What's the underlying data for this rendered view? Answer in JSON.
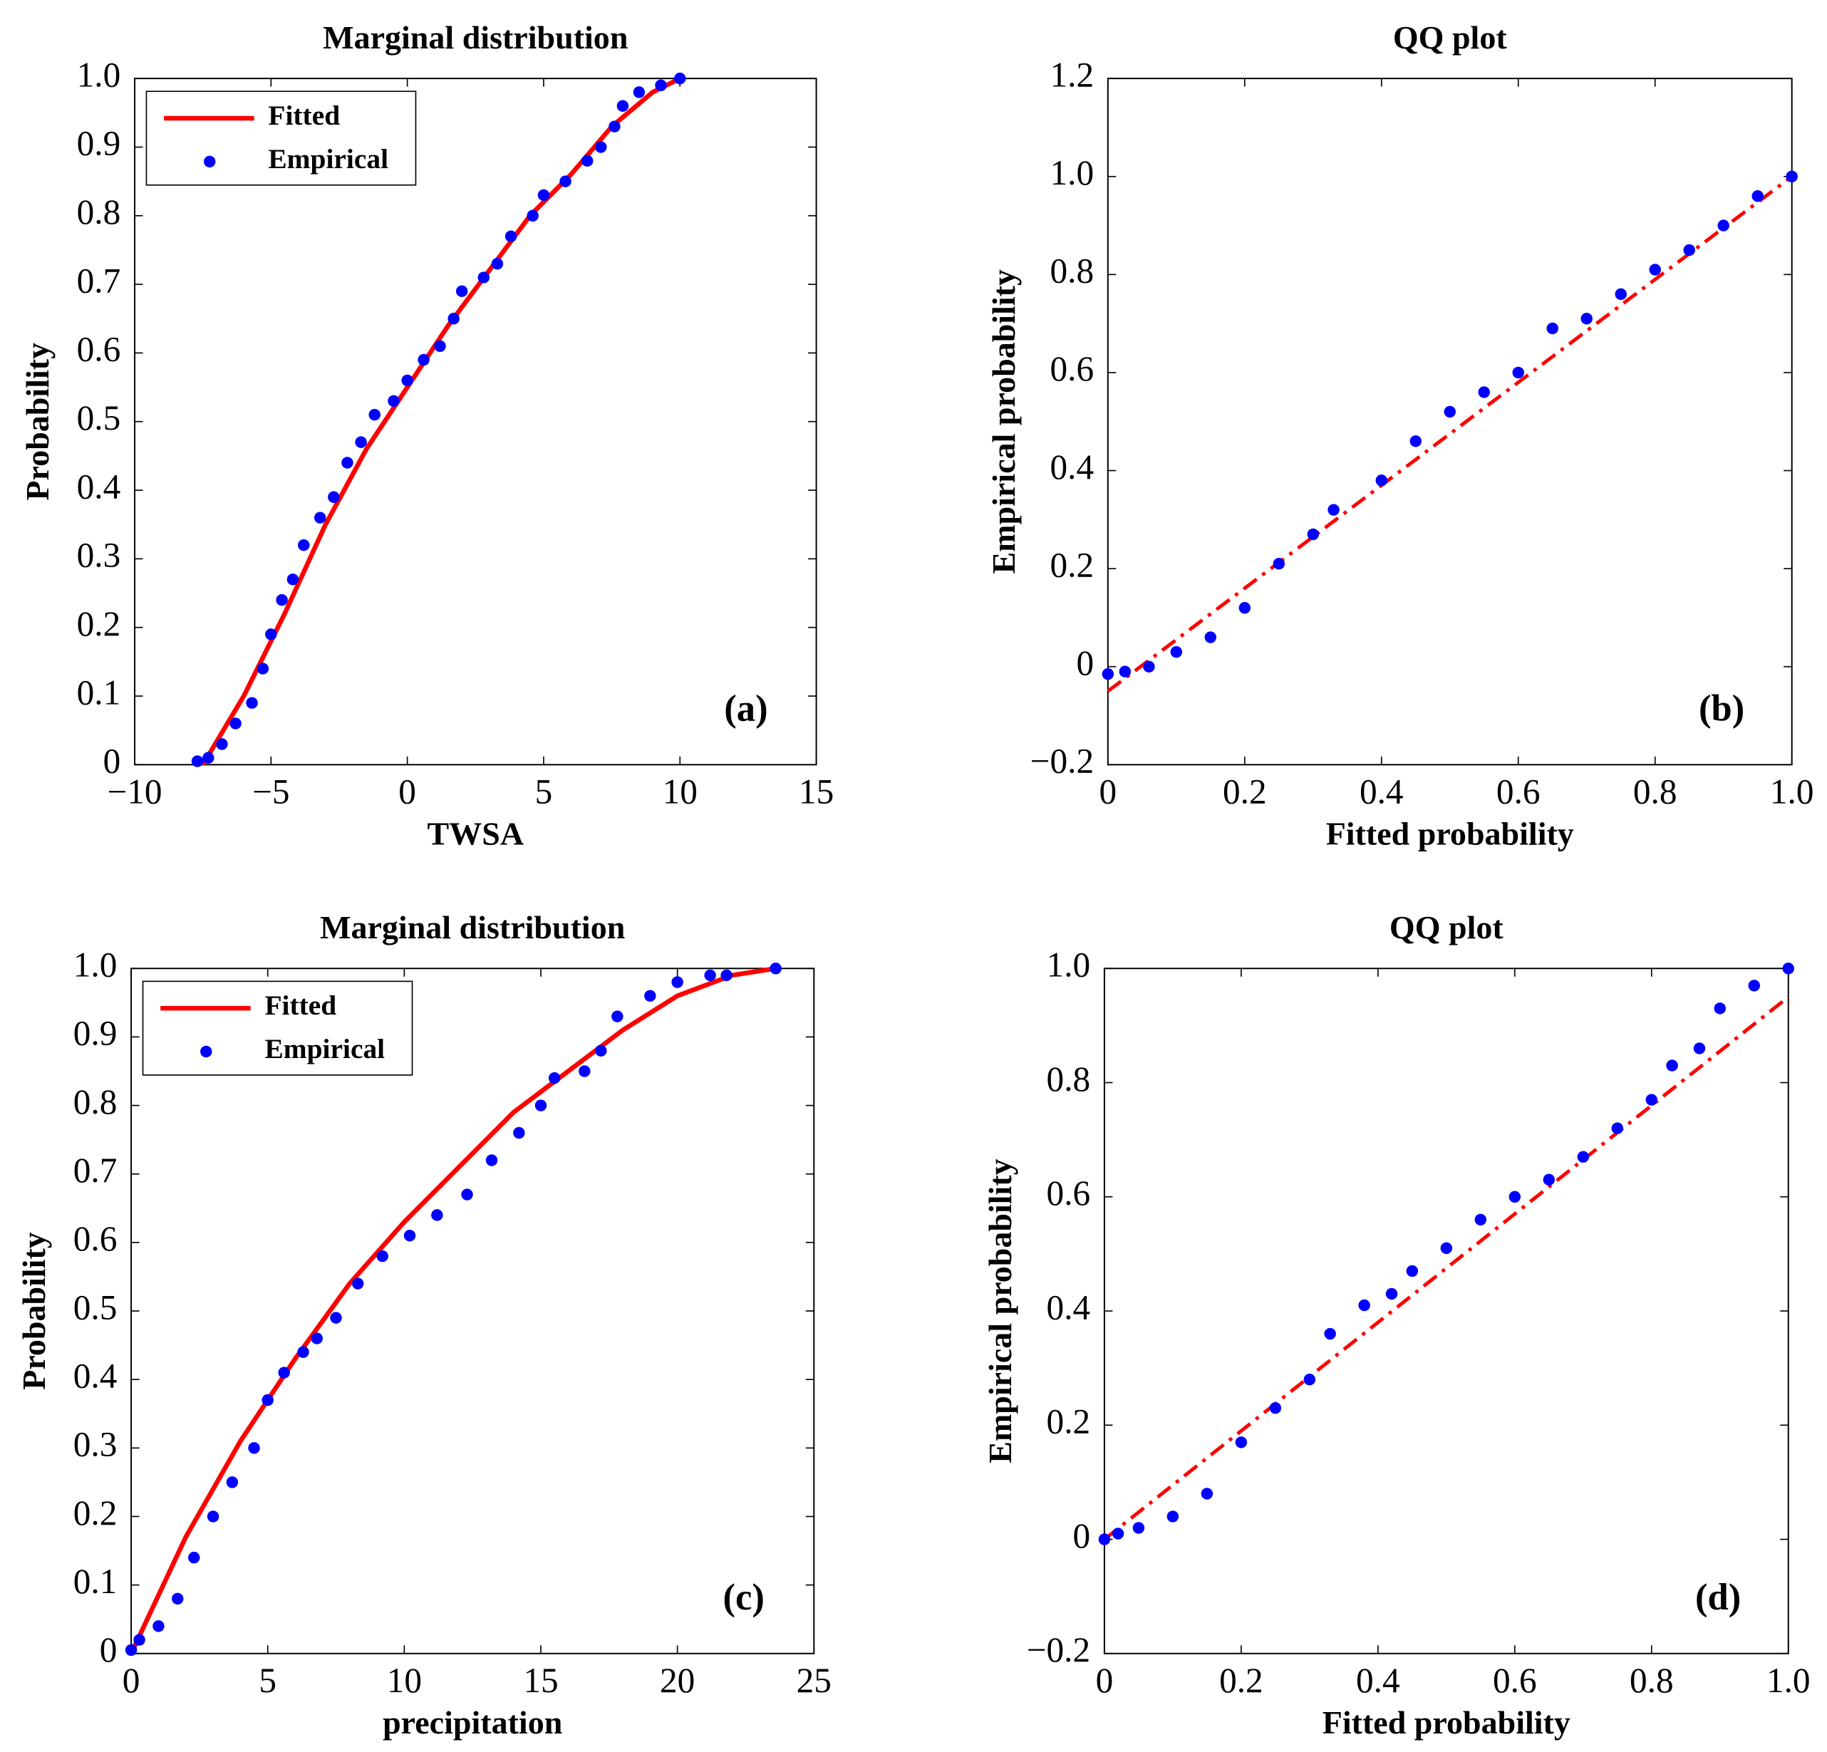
{
  "chart_data": [
    {
      "type": "scatter",
      "title": "Marginal distribution",
      "xlabel": "TWSA",
      "ylabel": "Probability",
      "annotation": "(a)",
      "legend": "upper left",
      "xlim": [
        -10,
        15
      ],
      "ylim": [
        0,
        1
      ],
      "xticks": [
        {
          "value": -10,
          "label": "−10"
        },
        {
          "value": -5,
          "label": "−5"
        },
        0,
        5,
        10,
        15
      ],
      "yticks": [
        0,
        0.1,
        0.2,
        0.3,
        0.4,
        0.5,
        0.6,
        0.7,
        0.8,
        0.9,
        {
          "value": 1,
          "label": "1.0"
        }
      ],
      "series": [
        {
          "name": "Fitted",
          "color": "#ff0000",
          "mode": "line",
          "x": [
            -7.5,
            -6,
            -4.5,
            -3,
            -1.5,
            0,
            1.5,
            3,
            4.5,
            6,
            7.5,
            9,
            10
          ],
          "values": [
            0,
            0.1,
            0.22,
            0.35,
            0.46,
            0.55,
            0.64,
            0.72,
            0.8,
            0.86,
            0.93,
            0.98,
            1.0
          ]
        },
        {
          "name": "Empirical",
          "color": "#0000ff",
          "mode": "markers",
          "x": [
            -7.7,
            -7.3,
            -6.8,
            -6.3,
            -5.7,
            -5.3,
            -5,
            -4.6,
            -4.2,
            -3.8,
            -3.2,
            -2.7,
            -2.2,
            -1.7,
            -1.2,
            -0.5,
            0,
            0.6,
            1.2,
            1.7,
            2,
            2.8,
            3.3,
            3.8,
            4.6,
            5,
            5.8,
            6.6,
            7.1,
            7.6,
            7.9,
            8.5,
            9.3,
            10
          ],
          "values": [
            0.005,
            0.01,
            0.03,
            0.06,
            0.09,
            0.14,
            0.19,
            0.24,
            0.27,
            0.32,
            0.36,
            0.39,
            0.44,
            0.47,
            0.51,
            0.53,
            0.56,
            0.59,
            0.61,
            0.65,
            0.69,
            0.71,
            0.73,
            0.77,
            0.8,
            0.83,
            0.85,
            0.88,
            0.9,
            0.93,
            0.96,
            0.98,
            0.99,
            1.0
          ]
        }
      ]
    },
    {
      "type": "scatter",
      "title": "QQ plot",
      "xlabel": "Fitted probability",
      "ylabel": "Empirical probability",
      "annotation": "(b)",
      "xlim": [
        0,
        1
      ],
      "ylim": [
        -0.2,
        1.2
      ],
      "xticks": [
        0,
        0.2,
        0.4,
        0.6,
        0.8,
        {
          "value": 1,
          "label": "1.0"
        }
      ],
      "yticks": [
        {
          "value": -0.2,
          "label": "−0.2"
        },
        0,
        0.2,
        0.4,
        0.6,
        0.8,
        {
          "value": 1,
          "label": "1.0"
        },
        1.2
      ],
      "series": [
        {
          "color": "#ff0000",
          "mode": "line",
          "dash": "dashdot",
          "x": [
            0,
            1
          ],
          "values": [
            -0.05,
            1.0
          ]
        },
        {
          "color": "#0000ff",
          "mode": "markers",
          "x": [
            0,
            0.025,
            0.06,
            0.1,
            0.15,
            0.2,
            0.25,
            0.3,
            0.33,
            0.4,
            0.45,
            0.5,
            0.55,
            0.6,
            0.65,
            0.7,
            0.75,
            0.8,
            0.85,
            0.9,
            0.95,
            1
          ],
          "values": [
            -0.015,
            -0.01,
            0,
            0.03,
            0.06,
            0.12,
            0.21,
            0.27,
            0.32,
            0.38,
            0.46,
            0.52,
            0.56,
            0.6,
            0.69,
            0.71,
            0.76,
            0.81,
            0.85,
            0.9,
            0.96,
            1.0
          ]
        }
      ]
    },
    {
      "type": "scatter",
      "title": "Marginal distribution",
      "xlabel": "precipitation",
      "ylabel": "Probability",
      "annotation": "(c)",
      "legend": "upper left",
      "xlim": [
        0,
        25
      ],
      "ylim": [
        0,
        1
      ],
      "xticks": [
        0,
        5,
        10,
        15,
        20,
        25
      ],
      "yticks": [
        0,
        0.1,
        0.2,
        0.3,
        0.4,
        0.5,
        0.6,
        0.7,
        0.8,
        0.9,
        {
          "value": 1,
          "label": "1.0"
        }
      ],
      "series": [
        {
          "name": "Fitted",
          "color": "#ff0000",
          "mode": "line",
          "x": [
            0,
            2,
            4,
            6,
            8,
            10,
            12,
            14,
            16,
            18,
            20,
            22,
            23.6
          ],
          "values": [
            0,
            0.17,
            0.31,
            0.43,
            0.54,
            0.63,
            0.71,
            0.79,
            0.85,
            0.91,
            0.96,
            0.99,
            1.0
          ]
        },
        {
          "name": "Empirical",
          "color": "#0000ff",
          "mode": "markers",
          "x": [
            0,
            0.3,
            1,
            1.7,
            2.3,
            3,
            3.7,
            4.5,
            5,
            5.6,
            6.3,
            6.8,
            7.5,
            8.3,
            9.2,
            10.2,
            11.2,
            12.3,
            13.2,
            14.2,
            15,
            15.5,
            16.6,
            17.2,
            17.8,
            19,
            20,
            21.2,
            21.8,
            23.6
          ],
          "values": [
            0.005,
            0.02,
            0.04,
            0.08,
            0.14,
            0.2,
            0.25,
            0.3,
            0.37,
            0.41,
            0.44,
            0.46,
            0.49,
            0.54,
            0.58,
            0.61,
            0.64,
            0.67,
            0.72,
            0.76,
            0.8,
            0.84,
            0.85,
            0.88,
            0.93,
            0.96,
            0.98,
            0.99,
            0.99,
            1.0
          ]
        }
      ]
    },
    {
      "type": "scatter",
      "title": "QQ plot",
      "xlabel": "Fitted probability",
      "ylabel": "Empirical probability",
      "annotation": "(d)",
      "xlim": [
        0,
        1
      ],
      "ylim": [
        -0.2,
        1
      ],
      "xticks": [
        0,
        0.2,
        0.4,
        0.6,
        0.8,
        {
          "value": 1,
          "label": "1.0"
        }
      ],
      "yticks": [
        {
          "value": -0.2,
          "label": "−0.2"
        },
        0,
        0.2,
        0.4,
        0.6,
        0.8,
        {
          "value": 1,
          "label": "1.0"
        }
      ],
      "series": [
        {
          "color": "#ff0000",
          "mode": "line",
          "dash": "dashdot",
          "x": [
            0,
            1
          ],
          "values": [
            0,
            0.95
          ]
        },
        {
          "color": "#0000ff",
          "mode": "markers",
          "x": [
            0,
            0.02,
            0.05,
            0.1,
            0.15,
            0.2,
            0.25,
            0.3,
            0.33,
            0.38,
            0.42,
            0.45,
            0.5,
            0.55,
            0.6,
            0.65,
            0.7,
            0.75,
            0.8,
            0.83,
            0.87,
            0.9,
            0.95,
            1
          ],
          "values": [
            0,
            0.01,
            0.02,
            0.04,
            0.08,
            0.17,
            0.23,
            0.28,
            0.36,
            0.41,
            0.43,
            0.47,
            0.51,
            0.56,
            0.6,
            0.63,
            0.67,
            0.72,
            0.77,
            0.83,
            0.86,
            0.93,
            0.97,
            1.0
          ]
        }
      ]
    }
  ]
}
